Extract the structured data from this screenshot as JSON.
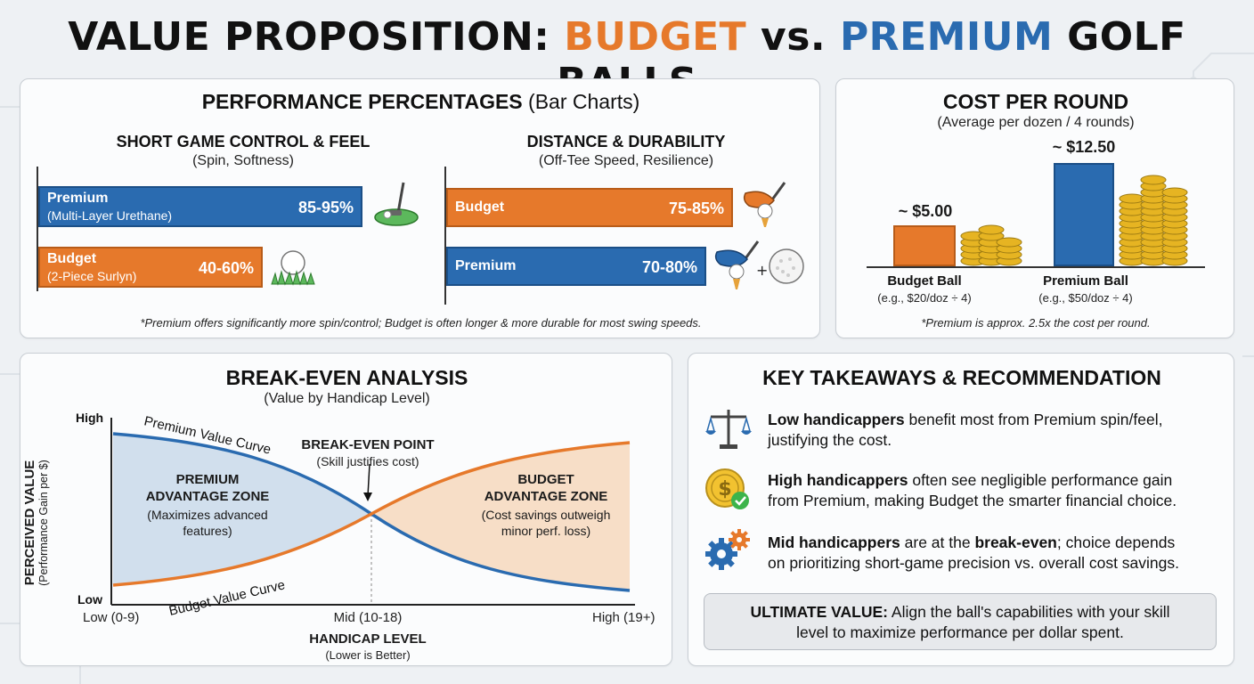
{
  "title": {
    "prefix": "VALUE PROPOSITION: ",
    "budget": "BUDGET",
    "vs": " vs. ",
    "premium": "PREMIUM",
    "suffix": " GOLF BALLS"
  },
  "colors": {
    "budget": "#e6792b",
    "premium": "#2a6bb0"
  },
  "performance": {
    "title": "PERFORMANCE PERCENTAGES",
    "title_suffix": " (Bar Charts)",
    "note": "*Premium offers significantly more spin/control; Budget is often longer & more durable for most swing speeds."
  },
  "cost": {
    "title": "COST PER ROUND",
    "subtitle": "(Average per dozen / 4 rounds)",
    "note": "*Premium is approx. 2.5x the cost per round."
  },
  "breakeven": {
    "title": "BREAK-EVEN ANALYSIS",
    "subtitle": "(Value by Handicap Level)"
  },
  "takeaways": {
    "title": "KEY TAKEAWAYS & RECOMMENDATION",
    "items": [
      {
        "icon": "scale-icon",
        "bold": "Low handicappers",
        "line1": " benefit most from Premium spin/feel,",
        "line2": "justifying the cost."
      },
      {
        "icon": "dollar-coin-icon",
        "bold": "High handicappers",
        "line1": " often see negligible performance gain",
        "line2": "from Premium, making Budget the smarter financial choice."
      },
      {
        "icon": "gears-icon",
        "bold": "Mid handicappers",
        "line1a": " are at the ",
        "bold2": "break-even",
        "line1b": "; choice depends",
        "line2": "on prioritizing short-game precision vs. overall cost savings."
      }
    ],
    "ultimate_bold": "ULTIMATE VALUE:",
    "ultimate_line1": " Align the ball's capabilities with your skill",
    "ultimate_line2": "level to maximize performance per dollar spent."
  },
  "chart_data": [
    {
      "type": "bar",
      "title": "SHORT GAME CONTROL & FEEL",
      "subtitle": "(Spin, Softness)",
      "orientation": "horizontal",
      "categories": [
        {
          "name": "Premium",
          "detail": "(Multi-Layer Urethane)",
          "range": [
            85,
            95
          ],
          "label": "85-95%",
          "color": "#2a6bb0"
        },
        {
          "name": "Budget",
          "detail": "(2-Piece Surlyn)",
          "range": [
            40,
            60
          ],
          "label": "40-60%",
          "color": "#e6792b"
        }
      ],
      "icons": [
        "putter-green-icon",
        "ball-on-grass-icon"
      ]
    },
    {
      "type": "bar",
      "title": "DISTANCE & DURABILITY",
      "subtitle": "(Off-Tee Speed, Resilience)",
      "orientation": "horizontal",
      "categories": [
        {
          "name": "Budget",
          "range": [
            75,
            85
          ],
          "label": "75-85%",
          "color": "#e6792b"
        },
        {
          "name": "Premium",
          "range": [
            70,
            80
          ],
          "label": "70-80%",
          "color": "#2a6bb0"
        }
      ],
      "icons": [
        "driver-tee-icon",
        "driver-tee-plus-ball-icon"
      ]
    },
    {
      "type": "bar",
      "title": "COST PER ROUND",
      "categories": [
        {
          "name": "Budget Ball",
          "detail": "(e.g., $20/doz ÷ 4)",
          "value": 5.0,
          "label": "~ $5.00",
          "color": "#e6792b"
        },
        {
          "name": "Premium Ball",
          "detail": "(e.g., $50/doz ÷ 4)",
          "value": 12.5,
          "label": "~ $12.50",
          "color": "#2a6bb0"
        }
      ],
      "icons": [
        "coin-stack-icon"
      ]
    },
    {
      "type": "line",
      "title": "BREAK-EVEN ANALYSIS",
      "ylabel": "PERCEIVED VALUE",
      "ylabel_sub": "(Performance Gain per $)",
      "xlabel": "HANDICAP LEVEL",
      "xlabel_sub": "(Lower is Better)",
      "x_ticks": [
        "Low (0-9)",
        "Mid (10-18)",
        "High (19+)"
      ],
      "y_ticks": [
        "High",
        "Low"
      ],
      "series": [
        {
          "name": "Premium Value Curve",
          "color": "#2a6bb0",
          "values": [
            0.95,
            0.5,
            0.07
          ]
        },
        {
          "name": "Budget Value Curve",
          "color": "#e6792b",
          "values": [
            0.1,
            0.5,
            0.9
          ]
        }
      ],
      "annotations": {
        "break_even": "BREAK-EVEN POINT",
        "break_even_sub": "(Skill justifies cost)",
        "premium_zone": [
          "PREMIUM",
          "ADVANTAGE ZONE"
        ],
        "premium_zone_sub": [
          "(Maximizes advanced",
          "features)"
        ],
        "budget_zone": [
          "BUDGET",
          "ADVANTAGE ZONE"
        ],
        "budget_zone_sub": [
          "(Cost savings outweigh",
          "minor perf. loss)"
        ]
      }
    }
  ]
}
